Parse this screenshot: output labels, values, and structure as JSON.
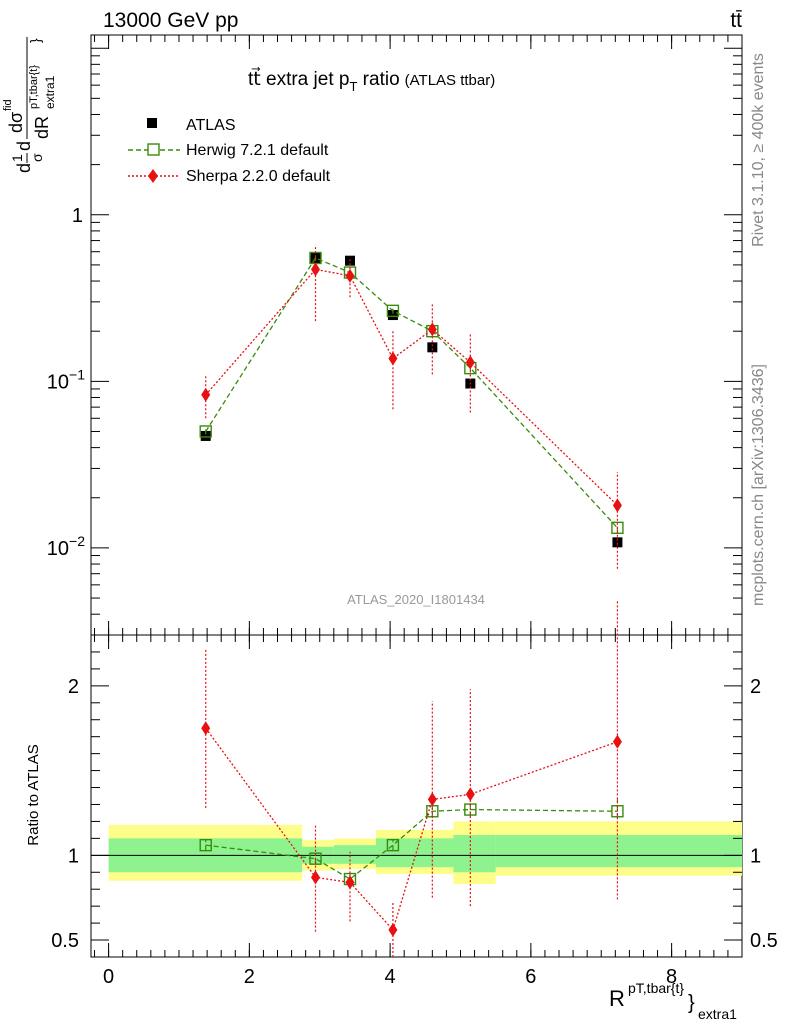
{
  "header": {
    "energy_label": "13000 GeV pp",
    "process_label": "tt̄",
    "side_version": "Rivet 3.1.10, ≥ 400k events",
    "side_source": "mcplots.cern.ch [arXiv:1306.3436]",
    "analysis_id": "ATLAS_2020_I1801434"
  },
  "chart_data": {
    "type": "line",
    "title_main": "tt⃗ extra jet p",
    "title_sub": "T",
    "title_tail": " ratio",
    "title_note": "(ATLAS ttbar)",
    "ylabel_upper": {
      "d1": "d",
      "one": "1",
      "sigma": "σ",
      "d2": "d",
      "dsigma": "dσ",
      "fid": "fid",
      "dR": "dR",
      "sup": "pT,tbar{t}",
      "sub": "extra1",
      "brace": "}"
    },
    "ylabel_lower": "Ratio to ATLAS",
    "xlabel": {
      "base": "R",
      "sup": "pT,tbar{t}",
      "sub": "extra1",
      "brace": "}"
    },
    "xlim": [
      -0.25,
      9.0
    ],
    "ylim_upper": [
      0.003,
      12
    ],
    "ylim_lower": [
      0.4,
      2.3
    ],
    "x_ticks": [
      0,
      2,
      4,
      6,
      8
    ],
    "y_ticks_upper": [
      {
        "value": 1,
        "base": "1",
        "exp": ""
      },
      {
        "value": 0.1,
        "base": "10",
        "exp": "−1"
      },
      {
        "value": 0.01,
        "base": "10",
        "exp": "−2"
      }
    ],
    "y_ticks_lower": [
      {
        "value": 2,
        "label": "2"
      },
      {
        "value": 1,
        "label": "1"
      },
      {
        "value": 0.5,
        "label": "0.5"
      }
    ],
    "bins": [
      {
        "lo": 0.0,
        "hi": 2.75,
        "inner": [
          0.9,
          1.1
        ],
        "outer": [
          0.85,
          1.18
        ]
      },
      {
        "lo": 2.75,
        "hi": 3.2,
        "inner": [
          0.95,
          1.05
        ],
        "outer": [
          0.91,
          1.09
        ]
      },
      {
        "lo": 3.2,
        "hi": 3.8,
        "inner": [
          0.95,
          1.06
        ],
        "outer": [
          0.92,
          1.1
        ]
      },
      {
        "lo": 3.8,
        "hi": 4.3,
        "inner": [
          0.93,
          1.1
        ],
        "outer": [
          0.89,
          1.15
        ]
      },
      {
        "lo": 4.3,
        "hi": 4.9,
        "inner": [
          0.93,
          1.1
        ],
        "outer": [
          0.89,
          1.15
        ]
      },
      {
        "lo": 4.9,
        "hi": 5.5,
        "inner": [
          0.9,
          1.12
        ],
        "outer": [
          0.83,
          1.2
        ]
      },
      {
        "lo": 5.5,
        "hi": 9.0,
        "inner": [
          0.93,
          1.12
        ],
        "outer": [
          0.88,
          1.2
        ]
      }
    ],
    "series": [
      {
        "name": "ATLAS",
        "color": "#000000",
        "marker": "filled-square",
        "dash": "",
        "x": [
          1.38,
          2.94,
          3.43,
          4.04,
          4.6,
          5.14,
          7.23
        ],
        "y": [
          0.047,
          0.55,
          0.53,
          0.25,
          0.16,
          0.097,
          0.0108
        ],
        "err": [
          [
            0.047,
            0.047
          ],
          [
            0.55,
            0.55
          ],
          [
            0.53,
            0.53
          ],
          [
            0.25,
            0.25
          ],
          [
            0.16,
            0.16
          ],
          [
            0.097,
            0.097
          ],
          [
            0.0108,
            0.0108
          ]
        ],
        "ratio": [
          1.0,
          1.0,
          1.0,
          1.0,
          1.0,
          1.0,
          1.0
        ],
        "ratio_err": [
          [
            1.0,
            1.0
          ],
          [
            1.0,
            1.0
          ],
          [
            1.0,
            1.0
          ],
          [
            1.0,
            1.0
          ],
          [
            1.0,
            1.0
          ],
          [
            1.0,
            1.0
          ],
          [
            1.0,
            1.0
          ]
        ]
      },
      {
        "name": "Herwig 7.2.1 default",
        "color": "#3a8a0e",
        "marker": "open-square",
        "dash": "5,3",
        "x": [
          1.38,
          2.94,
          3.43,
          4.04,
          4.6,
          5.14,
          7.23
        ],
        "y": [
          0.05,
          0.55,
          0.45,
          0.265,
          0.2,
          0.12,
          0.0132
        ],
        "err": [
          [
            0.048,
            0.052
          ],
          [
            0.53,
            0.57
          ],
          [
            0.43,
            0.47
          ],
          [
            0.255,
            0.275
          ],
          [
            0.19,
            0.21
          ],
          [
            0.115,
            0.125
          ],
          [
            0.0125,
            0.0139
          ]
        ],
        "ratio": [
          1.06,
          0.98,
          0.86,
          1.06,
          1.26,
          1.27,
          1.26
        ],
        "ratio_err": [
          [
            1.03,
            1.09
          ],
          [
            0.95,
            1.01
          ],
          [
            0.83,
            0.89
          ],
          [
            1.03,
            1.09
          ],
          [
            1.22,
            1.3
          ],
          [
            1.23,
            1.31
          ],
          [
            1.22,
            1.33
          ]
        ]
      },
      {
        "name": "Sherpa 2.2.0 default",
        "color": "#e81010",
        "marker": "diamond",
        "dash": "2,2",
        "x": [
          1.38,
          2.94,
          3.43,
          4.04,
          4.6,
          5.14,
          7.23
        ],
        "y": [
          0.083,
          0.47,
          0.43,
          0.137,
          0.205,
          0.13,
          0.018
        ],
        "err": [
          [
            0.06,
            0.108
          ],
          [
            0.23,
            0.66
          ],
          [
            0.32,
            0.54
          ],
          [
            0.068,
            0.2
          ],
          [
            0.11,
            0.29
          ],
          [
            0.065,
            0.195
          ],
          [
            0.0075,
            0.0285
          ]
        ],
        "ratio": [
          1.75,
          0.87,
          0.84,
          0.56,
          1.33,
          1.36,
          1.67
        ],
        "ratio_err": [
          [
            1.28,
            2.22
          ],
          [
            0.55,
            1.18
          ],
          [
            0.61,
            1.02
          ],
          [
            0.4,
            0.73
          ],
          [
            0.75,
            1.91
          ],
          [
            0.7,
            1.98
          ],
          [
            0.74,
            2.5
          ]
        ]
      }
    ]
  }
}
